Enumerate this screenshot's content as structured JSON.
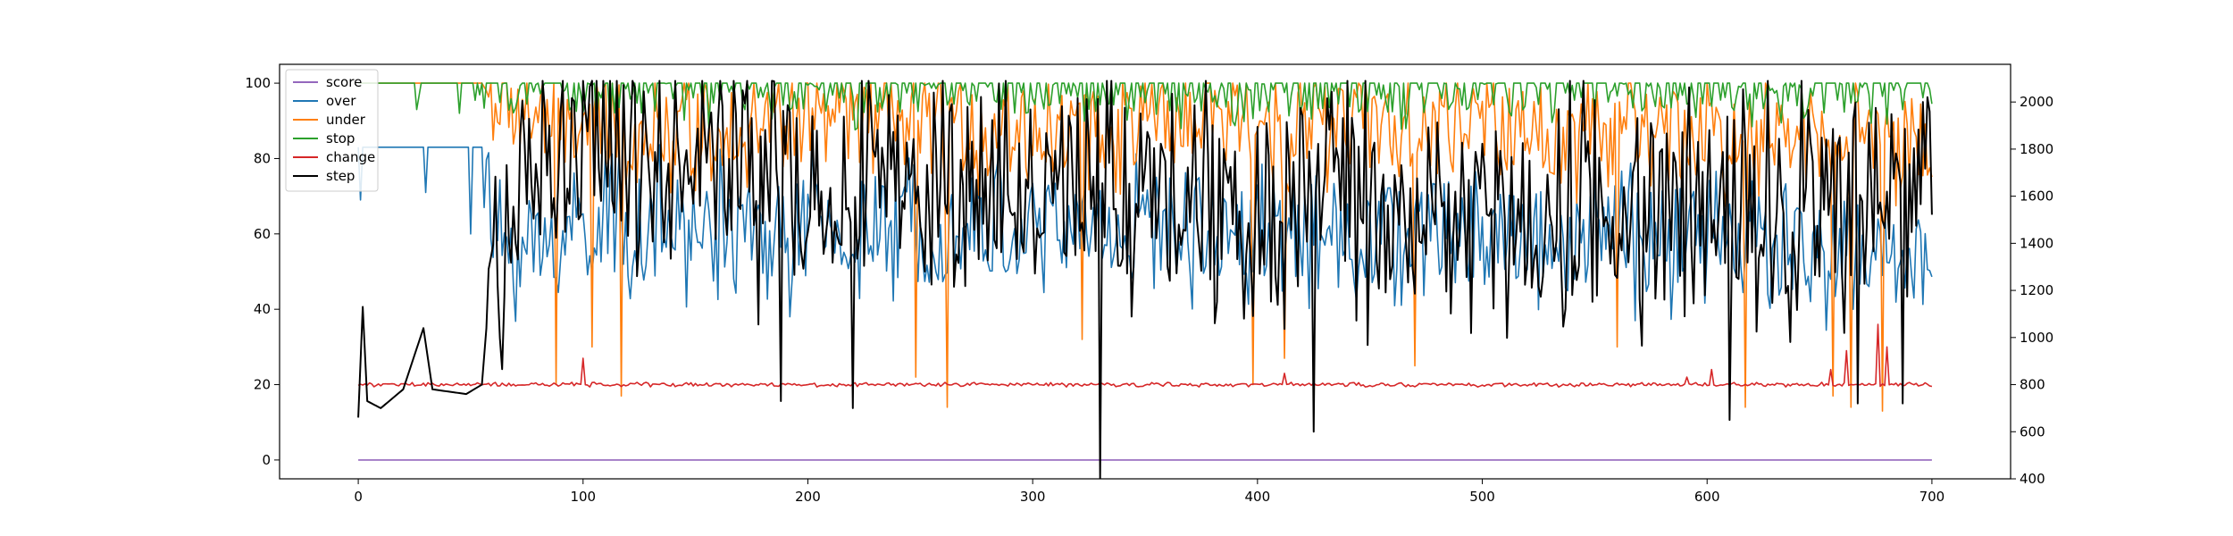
{
  "chart_data": {
    "type": "line",
    "title": "",
    "xlabel": "",
    "ylabel": "",
    "y2label": "",
    "xlim": [
      -35,
      735
    ],
    "ylim": [
      -5,
      105
    ],
    "y2lim": [
      400,
      2160
    ],
    "xticks": [
      0,
      100,
      200,
      300,
      400,
      500,
      600,
      700
    ],
    "yticks": [
      0,
      20,
      40,
      60,
      80,
      100
    ],
    "y2ticks": [
      400,
      600,
      800,
      1000,
      1200,
      1400,
      1600,
      1800,
      2000
    ],
    "grid": false,
    "legend_position": "top-left",
    "x_points": 700,
    "series": [
      {
        "name": "score",
        "color": "#9467bd",
        "axis": "left",
        "control_points": [
          [
            0,
            0
          ],
          [
            700,
            0
          ]
        ],
        "noise": 0
      },
      {
        "name": "over",
        "color": "#1f77b4",
        "axis": "left",
        "control_points": [
          [
            0,
            83
          ],
          [
            1,
            69
          ],
          [
            2,
            83
          ],
          [
            29,
            83
          ],
          [
            30,
            71
          ],
          [
            31,
            83
          ],
          [
            49,
            83
          ],
          [
            50,
            60
          ],
          [
            51,
            83
          ],
          [
            55,
            83
          ],
          [
            60,
            60
          ],
          [
            80,
            55
          ],
          [
            100,
            62
          ],
          [
            200,
            60
          ],
          [
            300,
            62
          ],
          [
            400,
            62
          ],
          [
            500,
            60
          ],
          [
            600,
            58
          ],
          [
            650,
            55
          ],
          [
            700,
            55
          ]
        ],
        "noise": 14,
        "noise_start": 56
      },
      {
        "name": "under",
        "color": "#ff7f0e",
        "axis": "left",
        "control_points": [
          [
            0,
            100
          ],
          [
            55,
            100
          ],
          [
            60,
            95
          ],
          [
            100,
            88
          ],
          [
            200,
            90
          ],
          [
            300,
            88
          ],
          [
            400,
            90
          ],
          [
            500,
            88
          ],
          [
            600,
            86
          ],
          [
            700,
            85
          ]
        ],
        "noise": 12,
        "noise_start": 58,
        "dips": [
          [
            88,
            20
          ],
          [
            104,
            30
          ],
          [
            117,
            17
          ],
          [
            248,
            22
          ],
          [
            262,
            14
          ],
          [
            322,
            32
          ],
          [
            398,
            20
          ],
          [
            412,
            27
          ],
          [
            470,
            25
          ],
          [
            560,
            30
          ],
          [
            617,
            14
          ],
          [
            656,
            17
          ],
          [
            664,
            14
          ],
          [
            678,
            13
          ]
        ]
      },
      {
        "name": "stop",
        "color": "#2ca02c",
        "axis": "left",
        "control_points": [
          [
            0,
            100
          ],
          [
            25,
            100
          ],
          [
            26,
            93
          ],
          [
            28,
            100
          ],
          [
            44,
            100
          ],
          [
            45,
            92
          ],
          [
            46,
            100
          ],
          [
            700,
            100
          ]
        ],
        "noise": 8,
        "noise_start": 50,
        "floor": 78
      },
      {
        "name": "change",
        "color": "#d62728",
        "axis": "left",
        "control_points": [
          [
            0,
            20
          ],
          [
            700,
            20
          ]
        ],
        "noise": 0.4,
        "spikes": [
          [
            100,
            27
          ],
          [
            412,
            23
          ],
          [
            591,
            22
          ],
          [
            602,
            24
          ],
          [
            655,
            24
          ],
          [
            662,
            29
          ],
          [
            676,
            36
          ],
          [
            680,
            30
          ]
        ]
      },
      {
        "name": "step",
        "color": "#000000",
        "axis": "right",
        "control_points": [
          [
            0,
            660
          ],
          [
            2,
            1130
          ],
          [
            4,
            730
          ],
          [
            10,
            700
          ],
          [
            20,
            780
          ],
          [
            29,
            1040
          ],
          [
            33,
            780
          ],
          [
            48,
            760
          ],
          [
            55,
            800
          ],
          [
            60,
            1400
          ],
          [
            90,
            1700
          ],
          [
            100,
            1850
          ],
          [
            200,
            1600
          ],
          [
            300,
            1650
          ],
          [
            400,
            1600
          ],
          [
            500,
            1500
          ],
          [
            600,
            1550
          ],
          [
            700,
            1650
          ]
        ],
        "noise": 380,
        "noise_start": 58,
        "min": 400,
        "max": 2090,
        "dips": [
          [
            330,
            400
          ],
          [
            425,
            600
          ],
          [
            220,
            700
          ],
          [
            188,
            730
          ],
          [
            610,
            650
          ],
          [
            667,
            720
          ],
          [
            687,
            720
          ]
        ]
      }
    ]
  }
}
